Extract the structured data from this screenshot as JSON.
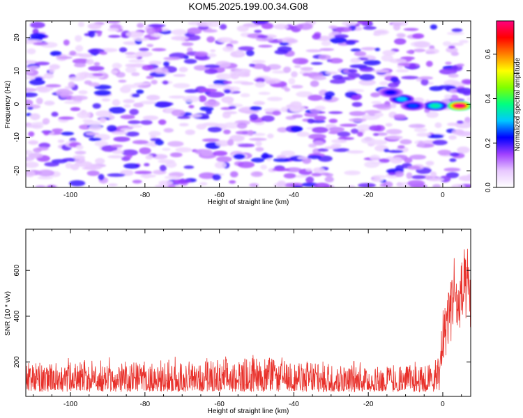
{
  "title": "KOM5.2025.199.00.34.G08",
  "chart_data": [
    {
      "type": "heatmap",
      "xlabel": "Height of straight line (km)",
      "ylabel": "Frequency (Hz)",
      "xlim": [
        -112,
        7.5
      ],
      "ylim": [
        -25,
        25
      ],
      "xticks": [
        -100,
        -80,
        -60,
        -40,
        -20,
        0
      ],
      "yticks": [
        -20,
        -10,
        0,
        10,
        20
      ],
      "colorbar": {
        "label": "Normalized spectral amplitude",
        "range": [
          0.0,
          0.75
        ],
        "ticks": [
          0.0,
          0.2,
          0.4,
          0.6
        ],
        "colors": [
          "#ffffff",
          "#e8c8ff",
          "#a040ff",
          "#0000ff",
          "#00c8ff",
          "#00ff80",
          "#80ff00",
          "#ffff00",
          "#ff8000",
          "#ff0000",
          "#ff0080"
        ]
      },
      "hotspots": [
        {
          "x": 4.5,
          "y": -0.5,
          "value": 0.75
        },
        {
          "x": -2,
          "y": -0.5,
          "value": 0.35
        },
        {
          "x": -11,
          "y": 1.5,
          "value": 0.3
        },
        {
          "x": -8,
          "y": -0.5,
          "value": 0.25
        },
        {
          "x": -14,
          "y": 3.5,
          "value": 0.22
        }
      ],
      "background_level": [
        0.05,
        0.22
      ]
    },
    {
      "type": "line",
      "color": "#e8302a",
      "xlabel": "Height of straight line (km)",
      "ylabel": "SNR (10 * v/v)",
      "xlim": [
        -112,
        7.5
      ],
      "ylim": [
        50,
        780
      ],
      "xticks": [
        -100,
        -80,
        -60,
        -40,
        -20,
        0
      ],
      "yticks": [
        200,
        400,
        600
      ],
      "series": [
        {
          "x": [
            -112,
            -100,
            -90,
            -80,
            -70,
            -60,
            -50,
            -40,
            -30,
            -20,
            -10,
            -2,
            -1,
            0,
            1,
            2,
            3,
            4,
            5,
            6,
            7,
            7.5
          ],
          "mean": [
            120,
            122,
            125,
            118,
            120,
            122,
            135,
            128,
            120,
            118,
            115,
            115,
            150,
            300,
            380,
            450,
            520,
            420,
            480,
            500,
            520,
            450
          ],
          "spread": [
            150,
            150,
            150,
            150,
            150,
            150,
            160,
            150,
            150,
            140,
            140,
            140,
            160,
            220,
            240,
            260,
            300,
            280,
            300,
            300,
            300,
            280
          ]
        }
      ]
    }
  ]
}
